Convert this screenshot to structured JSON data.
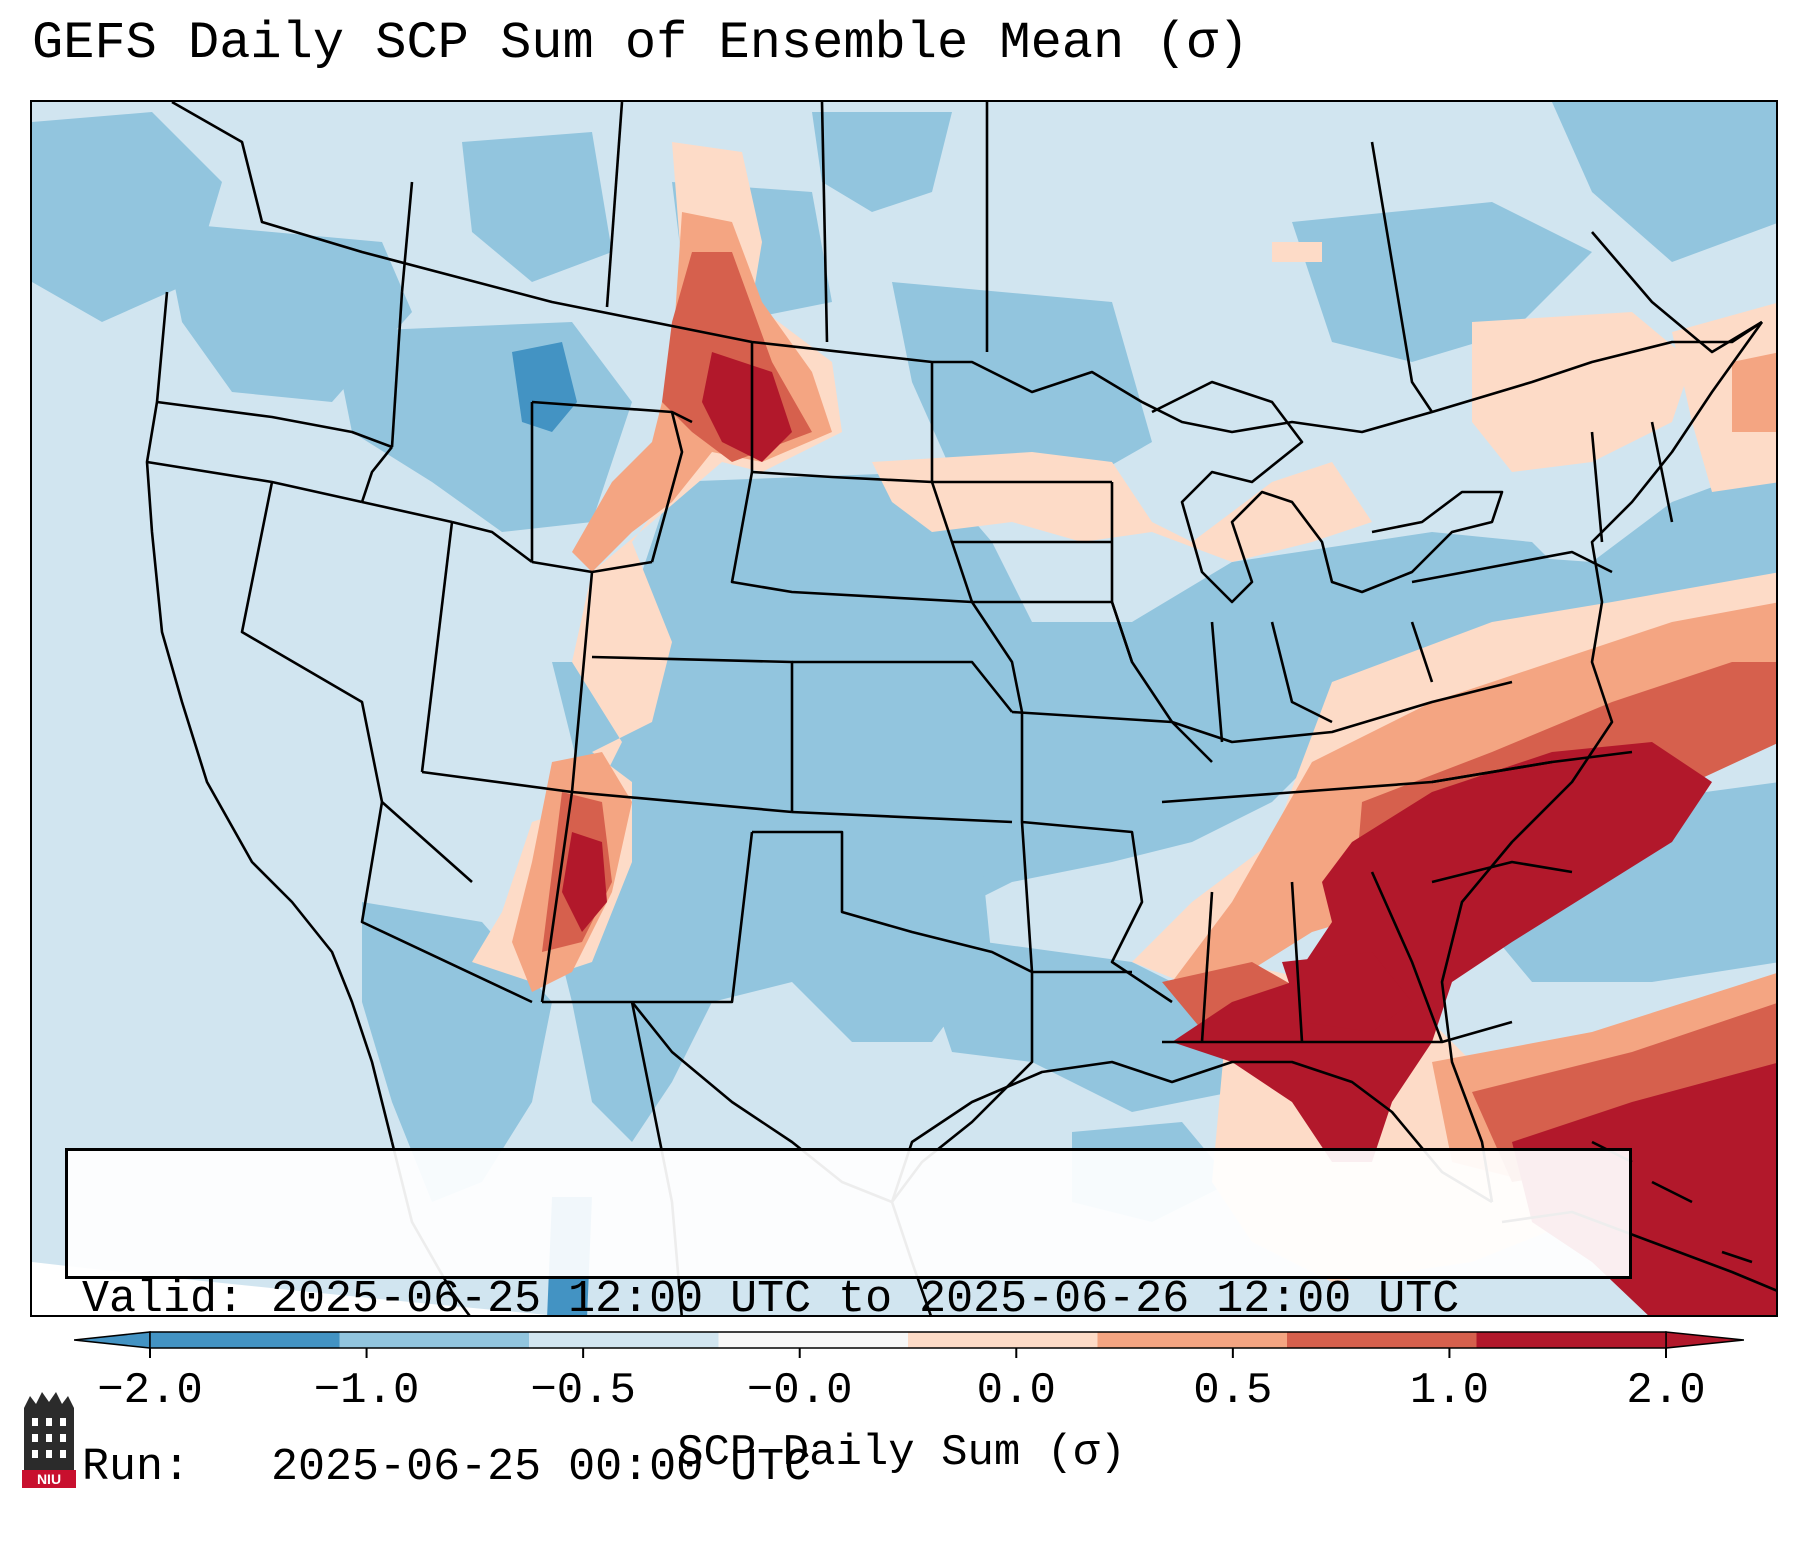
{
  "title": "GEFS Daily SCP Sum of Ensemble Mean (σ)",
  "info": {
    "valid_label": "Valid:",
    "valid_range": "2025-06-25 12:00 UTC to 2025-06-26 12:00 UTC",
    "run_label": "Run:",
    "run_time": "2025-06-25 00:00 UTC"
  },
  "colorbar": {
    "title": "SCP Daily Sum (σ)",
    "ticks": [
      "−2.0",
      "−1.0",
      "−0.5",
      "−0.0",
      "0.0",
      "0.5",
      "1.0",
      "2.0"
    ],
    "colors": [
      "#4393c3",
      "#92c5de",
      "#d1e5f0",
      "#f7f7f7",
      "#fddbc7",
      "#f4a582",
      "#d6604d",
      "#b2182b"
    ],
    "extend": "both"
  },
  "map": {
    "projection": "Lambert Conformal CONUS",
    "field_colors": {
      "strong_neg": "#4393c3",
      "mod_neg": "#92c5de",
      "weak_neg": "#d1e5f0",
      "weak_pos": "#fddbc7",
      "mod_pos": "#f4a582",
      "high_pos": "#d6604d",
      "very_high_pos": "#b2182b"
    }
  },
  "logo": {
    "text": "NIU"
  }
}
